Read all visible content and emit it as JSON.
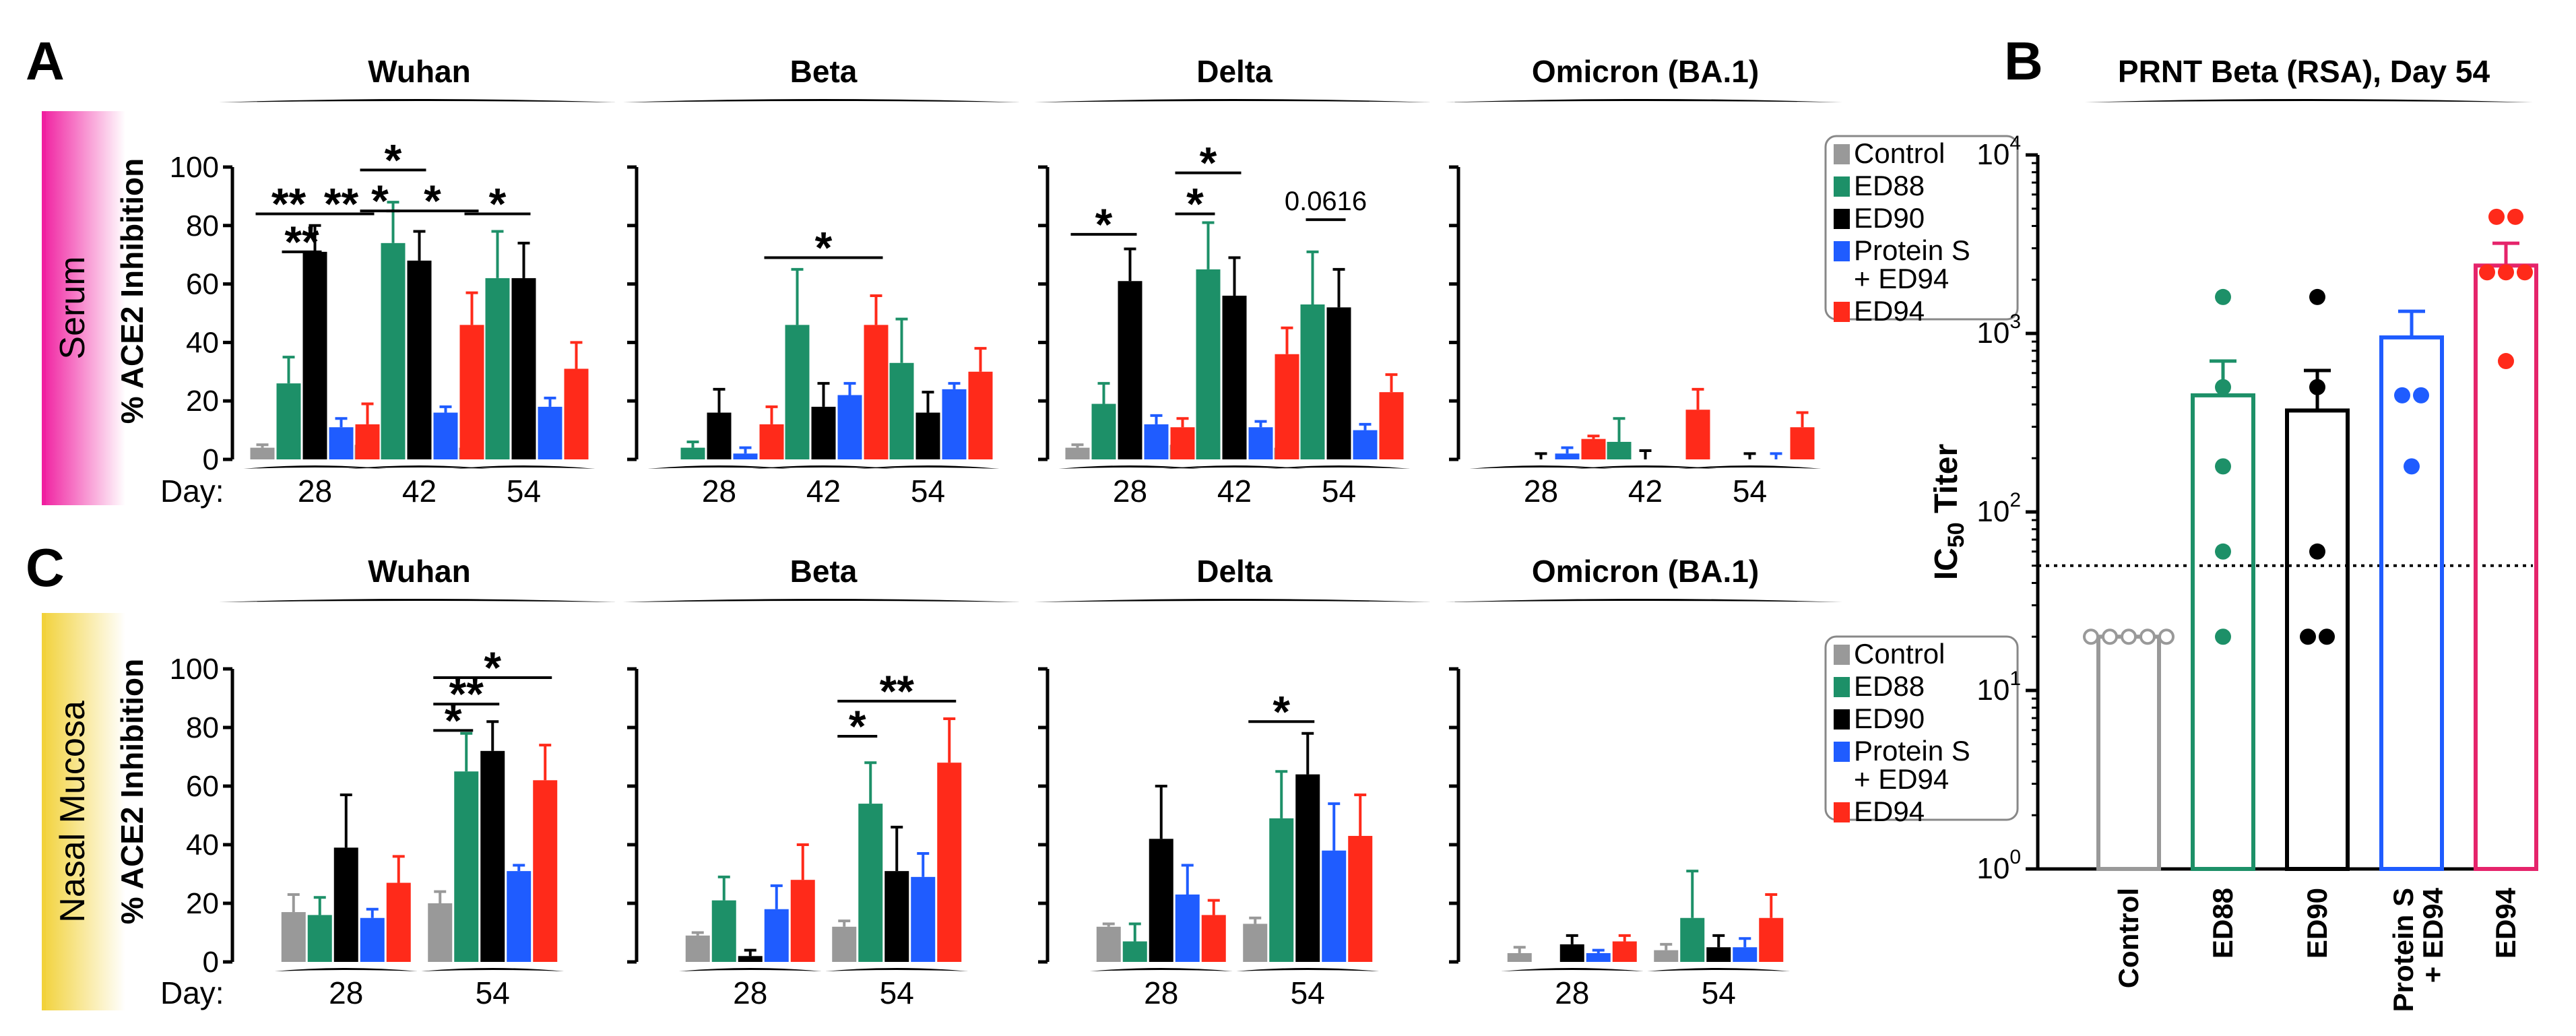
{
  "panels": {
    "a": {
      "letter": "A",
      "row_label": "Serum"
    },
    "b": {
      "letter": "B"
    },
    "c": {
      "letter": "C",
      "row_label": "Nasal Mucosa"
    }
  },
  "y_axis_label": "% ACE2 Inhibition",
  "day_label": "Day:",
  "legend_entries": [
    {
      "name": "Control",
      "color": "#999999"
    },
    {
      "name": "ED88",
      "color": "#1d9068"
    },
    {
      "name": "ED90",
      "color": "#000000"
    },
    {
      "name": "Protein S\n+ ED94",
      "color": "#1f5cff"
    },
    {
      "name": "ED94",
      "color": "#ff2a1a"
    }
  ],
  "chart_data": [
    {
      "type": "bar",
      "panel": "A",
      "row_label": "Serum",
      "title": "Wuhan",
      "ylabel": "% ACE2 Inhibition",
      "ylim": [
        0,
        100
      ],
      "yticks": [
        0,
        20,
        40,
        60,
        80,
        100
      ],
      "x_label": "Day:",
      "categories": [
        "28",
        "42",
        "54"
      ],
      "series": [
        {
          "name": "Control",
          "values": [
            4,
            5,
            4
          ],
          "errors": [
            1,
            2,
            1
          ]
        },
        {
          "name": "ED88",
          "values": [
            26,
            74,
            62
          ],
          "errors": [
            9,
            14,
            16
          ]
        },
        {
          "name": "ED90",
          "values": [
            71,
            68,
            62
          ],
          "errors": [
            9,
            10,
            12
          ]
        },
        {
          "name": "Protein S + ED94",
          "values": [
            11,
            16,
            18
          ],
          "errors": [
            3,
            2,
            3
          ]
        },
        {
          "name": "ED94",
          "values": [
            12,
            46,
            31
          ],
          "errors": [
            7,
            11,
            9
          ]
        }
      ],
      "annotations": [
        {
          "text": "**",
          "from": [
            0,
            0
          ],
          "to": [
            0,
            2
          ],
          "y": 84
        },
        {
          "text": "**",
          "from": [
            0,
            2
          ],
          "to": [
            0,
            4
          ],
          "y": 84
        },
        {
          "text": "**",
          "from": [
            0,
            1
          ],
          "to": [
            0,
            2
          ],
          "y": 71
        },
        {
          "text": "*",
          "from": [
            1,
            0
          ],
          "to": [
            1,
            2
          ],
          "y": 99
        },
        {
          "text": "*",
          "from": [
            1,
            0
          ],
          "to": [
            1,
            1
          ],
          "y": 85
        },
        {
          "text": "*",
          "from": [
            1,
            1
          ],
          "to": [
            1,
            4
          ],
          "y": 85
        },
        {
          "text": "*",
          "from": [
            2,
            0
          ],
          "to": [
            2,
            2
          ],
          "y": 84
        }
      ]
    },
    {
      "type": "bar",
      "panel": "A",
      "title": "Beta",
      "ylim": [
        0,
        100
      ],
      "categories": [
        "28",
        "42",
        "54"
      ],
      "series": [
        {
          "name": "Control",
          "values": [
            0,
            0,
            0
          ],
          "errors": [
            0,
            0,
            0
          ]
        },
        {
          "name": "ED88",
          "values": [
            4,
            46,
            33
          ],
          "errors": [
            2,
            19,
            15
          ]
        },
        {
          "name": "ED90",
          "values": [
            16,
            18,
            16
          ],
          "errors": [
            8,
            8,
            7
          ]
        },
        {
          "name": "Protein S + ED94",
          "values": [
            2,
            22,
            24
          ],
          "errors": [
            2,
            4,
            2
          ]
        },
        {
          "name": "ED94",
          "values": [
            12,
            46,
            30
          ],
          "errors": [
            6,
            10,
            8
          ]
        }
      ],
      "annotations": [
        {
          "text": "*",
          "from": [
            1,
            0
          ],
          "to": [
            1,
            4
          ],
          "y": 69
        }
      ]
    },
    {
      "type": "bar",
      "panel": "A",
      "title": "Delta",
      "ylim": [
        0,
        100
      ],
      "categories": [
        "28",
        "42",
        "54"
      ],
      "series": [
        {
          "name": "Control",
          "values": [
            4,
            5,
            4
          ],
          "errors": [
            1,
            1,
            1
          ]
        },
        {
          "name": "ED88",
          "values": [
            19,
            65,
            53
          ],
          "errors": [
            7,
            16,
            18
          ]
        },
        {
          "name": "ED90",
          "values": [
            61,
            56,
            52
          ],
          "errors": [
            11,
            13,
            13
          ]
        },
        {
          "name": "Protein S + ED94",
          "values": [
            12,
            11,
            10
          ],
          "errors": [
            3,
            2,
            2
          ]
        },
        {
          "name": "ED94",
          "values": [
            11,
            36,
            23
          ],
          "errors": [
            3,
            9,
            6
          ]
        }
      ],
      "annotations": [
        {
          "text": "*",
          "from": [
            0,
            0
          ],
          "to": [
            0,
            2
          ],
          "y": 77
        },
        {
          "text": "*",
          "from": [
            1,
            0
          ],
          "to": [
            1,
            2
          ],
          "y": 98
        },
        {
          "text": "*",
          "from": [
            1,
            0
          ],
          "to": [
            1,
            1
          ],
          "y": 84
        },
        {
          "text": "0.0616",
          "from": [
            2,
            1
          ],
          "to": [
            2,
            2
          ],
          "y": 82
        }
      ]
    },
    {
      "type": "bar",
      "panel": "A",
      "title": "Omicron (BA.1)",
      "ylim": [
        0,
        100
      ],
      "categories": [
        "28",
        "42",
        "54"
      ],
      "series": [
        {
          "name": "Control",
          "values": [
            0,
            0,
            0
          ],
          "errors": [
            0,
            0,
            0
          ]
        },
        {
          "name": "ED88",
          "values": [
            0,
            6,
            0
          ],
          "errors": [
            0,
            8,
            0
          ]
        },
        {
          "name": "ED90",
          "values": [
            0,
            0,
            0
          ],
          "errors": [
            2,
            3,
            2
          ]
        },
        {
          "name": "Protein S + ED94",
          "values": [
            2,
            0,
            0
          ],
          "errors": [
            2,
            0,
            2
          ]
        },
        {
          "name": "ED94",
          "values": [
            7,
            17,
            11
          ],
          "errors": [
            1,
            7,
            5
          ]
        }
      ],
      "annotations": []
    },
    {
      "type": "bar",
      "panel": "C",
      "row_label": "Nasal Mucosa",
      "title": "Wuhan",
      "ylabel": "% ACE2 Inhibition",
      "ylim": [
        0,
        100
      ],
      "yticks": [
        0,
        20,
        40,
        60,
        80,
        100
      ],
      "x_label": "Day:",
      "categories": [
        "28",
        "54"
      ],
      "series": [
        {
          "name": "Control",
          "values": [
            17,
            20
          ],
          "errors": [
            6,
            4
          ]
        },
        {
          "name": "ED88",
          "values": [
            16,
            65
          ],
          "errors": [
            6,
            13
          ]
        },
        {
          "name": "ED90",
          "values": [
            39,
            72
          ],
          "errors": [
            18,
            10
          ]
        },
        {
          "name": "Protein S + ED94",
          "values": [
            15,
            31
          ],
          "errors": [
            3,
            2
          ]
        },
        {
          "name": "ED94",
          "values": [
            27,
            62
          ],
          "errors": [
            9,
            12
          ]
        }
      ],
      "annotations": [
        {
          "text": "*",
          "from": [
            1,
            0
          ],
          "to": [
            1,
            4
          ],
          "y": 97
        },
        {
          "text": "**",
          "from": [
            1,
            0
          ],
          "to": [
            1,
            2
          ],
          "y": 88
        },
        {
          "text": "*",
          "from": [
            1,
            0
          ],
          "to": [
            1,
            1
          ],
          "y": 79
        }
      ]
    },
    {
      "type": "bar",
      "panel": "C",
      "title": "Beta",
      "ylim": [
        0,
        100
      ],
      "categories": [
        "28",
        "54"
      ],
      "series": [
        {
          "name": "Control",
          "values": [
            9,
            12
          ],
          "errors": [
            1,
            2
          ]
        },
        {
          "name": "ED88",
          "values": [
            21,
            54
          ],
          "errors": [
            8,
            14
          ]
        },
        {
          "name": "ED90",
          "values": [
            2,
            31
          ],
          "errors": [
            2,
            15
          ]
        },
        {
          "name": "Protein S + ED94",
          "values": [
            18,
            29
          ],
          "errors": [
            8,
            8
          ]
        },
        {
          "name": "ED94",
          "values": [
            28,
            68
          ],
          "errors": [
            12,
            15
          ]
        }
      ],
      "annotations": [
        {
          "text": "**",
          "from": [
            1,
            0
          ],
          "to": [
            1,
            4
          ],
          "y": 89
        },
        {
          "text": "*",
          "from": [
            1,
            0
          ],
          "to": [
            1,
            1
          ],
          "y": 77
        }
      ]
    },
    {
      "type": "bar",
      "panel": "C",
      "title": "Delta",
      "ylim": [
        0,
        100
      ],
      "categories": [
        "28",
        "54"
      ],
      "series": [
        {
          "name": "Control",
          "values": [
            12,
            13
          ],
          "errors": [
            1,
            2
          ]
        },
        {
          "name": "ED88",
          "values": [
            7,
            49
          ],
          "errors": [
            6,
            16
          ]
        },
        {
          "name": "ED90",
          "values": [
            42,
            64
          ],
          "errors": [
            18,
            14
          ]
        },
        {
          "name": "Protein S + ED94",
          "values": [
            23,
            38
          ],
          "errors": [
            10,
            16
          ]
        },
        {
          "name": "ED94",
          "values": [
            16,
            43
          ],
          "errors": [
            5,
            14
          ]
        }
      ],
      "annotations": [
        {
          "text": "*",
          "from": [
            1,
            0
          ],
          "to": [
            1,
            2
          ],
          "y": 82
        }
      ]
    },
    {
      "type": "bar",
      "panel": "C",
      "title": "Omicron (BA.1)",
      "ylim": [
        0,
        100
      ],
      "categories": [
        "28",
        "54"
      ],
      "series": [
        {
          "name": "Control",
          "values": [
            3,
            4
          ],
          "errors": [
            2,
            2
          ]
        },
        {
          "name": "ED88",
          "values": [
            0,
            15
          ],
          "errors": [
            0,
            16
          ]
        },
        {
          "name": "ED90",
          "values": [
            6,
            5
          ],
          "errors": [
            3,
            4
          ]
        },
        {
          "name": "Protein S + ED94",
          "values": [
            3,
            5
          ],
          "errors": [
            1,
            3
          ]
        },
        {
          "name": "ED94",
          "values": [
            7,
            15
          ],
          "errors": [
            2,
            8
          ]
        }
      ],
      "annotations": []
    },
    {
      "type": "bar",
      "panel": "B",
      "title": "PRNT Beta (RSA), Day 54",
      "ylabel": "IC50 Titer",
      "yscale": "log",
      "ylim": [
        1,
        10000
      ],
      "yticks": [
        "10^0",
        "10^1",
        "10^2",
        "10^3",
        "10^4"
      ],
      "categories": [
        "Control",
        "ED88",
        "ED90",
        "Protein S\n+ ED94",
        "ED94"
      ],
      "values": [
        20,
        450,
        370,
        950,
        2400
      ],
      "errors": [
        0,
        250,
        250,
        380,
        800
      ],
      "points": [
        [
          20,
          20,
          20,
          20,
          20
        ],
        [
          1600,
          500,
          180,
          60,
          20
        ],
        [
          1600,
          500,
          60,
          20,
          20
        ],
        [
          450,
          450,
          180
        ],
        [
          4500,
          4500,
          2200,
          2200,
          2200,
          700
        ]
      ],
      "reference_line": 50,
      "colors": [
        "#999999",
        "#1d9068",
        "#000000",
        "#1f5cff",
        "#e5246b"
      ],
      "point_colors": [
        "#999999",
        "#1d9068",
        "#000000",
        "#1f5cff",
        "#ff2a1a"
      ]
    }
  ]
}
